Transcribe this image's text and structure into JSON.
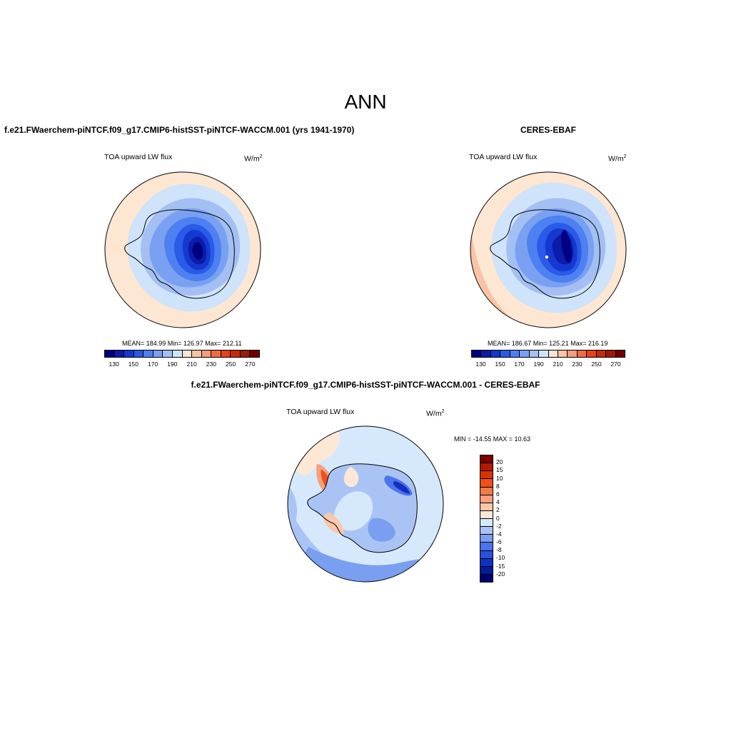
{
  "title": "ANN",
  "panels": [
    {
      "case_title": "f.e21.FWaerchem-piNTCF.f09_g17.CMIP6-histSST-piNTCF-WACCM.001 (yrs 1941-1970)",
      "variable": "TOA upward LW flux",
      "units": "W/m",
      "units_sup": "2",
      "stats": "MEAN= 184.99  Min= 126.97  Max= 212.11",
      "colorbar_labels": [
        "130",
        "150",
        "170",
        "190",
        "210",
        "230",
        "250",
        "270"
      ]
    },
    {
      "case_title": "CERES-EBAF",
      "variable": "TOA upward LW flux",
      "units": "W/m",
      "units_sup": "2",
      "stats": "MEAN= 186.67  Min= 125.21  Max= 216.19",
      "colorbar_labels": [
        "130",
        "150",
        "170",
        "190",
        "210",
        "230",
        "250",
        "270"
      ]
    },
    {
      "case_title": "f.e21.FWaerchem-piNTCF.f09_g17.CMIP6-histSST-piNTCF-WACCM.001 - CERES-EBAF",
      "variable": "TOA upward LW flux",
      "units": "W/m",
      "units_sup": "2",
      "stats": "MIN = -14.55 MAX =  10.63",
      "colorbar_labels": [
        "20",
        "15",
        "10",
        "8",
        "6",
        "4",
        "2",
        "0",
        "-2",
        "-4",
        "-6",
        "-8",
        "-10",
        "-15",
        "-20"
      ]
    }
  ],
  "colors": {
    "abs_palette": [
      "#000080",
      "#0a1ca8",
      "#1438d0",
      "#2a5ae8",
      "#4d80f0",
      "#7aa0f2",
      "#a3bff3",
      "#cfe3fa",
      "#fde6d2",
      "#f9c3a6",
      "#f49c7c",
      "#f06a48",
      "#e84018",
      "#c42b0a",
      "#9e1a02",
      "#700000"
    ],
    "diff_palette": [
      "#7a0000",
      "#b01a00",
      "#d93300",
      "#f0501e",
      "#f27a4a",
      "#f6a07c",
      "#f9c8aa",
      "#fde8d6",
      "#d6e8fb",
      "#a9c4f4",
      "#7a9ff0",
      "#4c74ec",
      "#2a50e0",
      "#1230c0",
      "#001c9a",
      "#000070"
    ]
  }
}
